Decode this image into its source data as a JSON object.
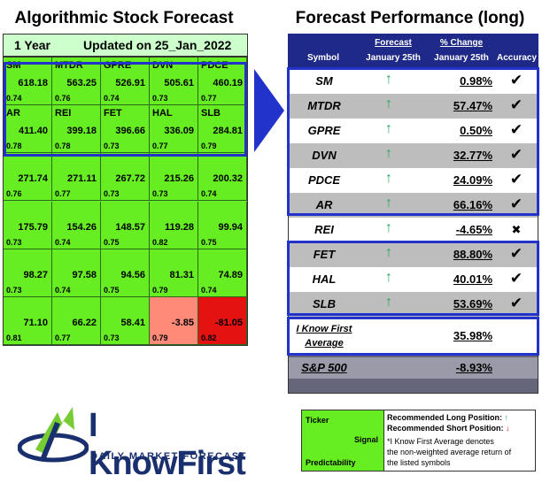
{
  "left": {
    "title": "Algorithmic Stock Forecast",
    "period": "1 Year",
    "updated": "Updated on 25_Jan_2022",
    "grid": [
      [
        {
          "ticker": "SM",
          "signal": "618.18",
          "pred": "0.74",
          "color": "#66ee22"
        },
        {
          "ticker": "MTDR",
          "signal": "563.25",
          "pred": "0.76",
          "color": "#66ee22"
        },
        {
          "ticker": "GPRE",
          "signal": "526.91",
          "pred": "0.74",
          "color": "#66ee22"
        },
        {
          "ticker": "DVN",
          "signal": "505.61",
          "pred": "0.73",
          "color": "#66ee22"
        },
        {
          "ticker": "PDCE",
          "signal": "460.19",
          "pred": "0.77",
          "color": "#66ee22"
        }
      ],
      [
        {
          "ticker": "AR",
          "signal": "411.40",
          "pred": "0.78",
          "color": "#66ee22"
        },
        {
          "ticker": "REI",
          "signal": "399.18",
          "pred": "0.78",
          "color": "#66ee22"
        },
        {
          "ticker": "FET",
          "signal": "396.66",
          "pred": "0.73",
          "color": "#66ee22"
        },
        {
          "ticker": "HAL",
          "signal": "336.09",
          "pred": "0.77",
          "color": "#66ee22"
        },
        {
          "ticker": "SLB",
          "signal": "284.81",
          "pred": "0.79",
          "color": "#66ee22"
        }
      ],
      [
        {
          "ticker": "",
          "signal": "271.74",
          "pred": "0.76",
          "color": "#66ee22"
        },
        {
          "ticker": "",
          "signal": "271.11",
          "pred": "0.77",
          "color": "#66ee22"
        },
        {
          "ticker": "",
          "signal": "267.72",
          "pred": "0.73",
          "color": "#66ee22"
        },
        {
          "ticker": "",
          "signal": "215.26",
          "pred": "0.73",
          "color": "#66ee22"
        },
        {
          "ticker": "",
          "signal": "200.32",
          "pred": "0.74",
          "color": "#66ee22"
        }
      ],
      [
        {
          "ticker": "",
          "signal": "175.79",
          "pred": "0.73",
          "color": "#66ee22"
        },
        {
          "ticker": "",
          "signal": "154.26",
          "pred": "0.74",
          "color": "#66ee22"
        },
        {
          "ticker": "",
          "signal": "148.57",
          "pred": "0.75",
          "color": "#66ee22"
        },
        {
          "ticker": "",
          "signal": "119.28",
          "pred": "0.82",
          "color": "#66ee22"
        },
        {
          "ticker": "",
          "signal": "99.94",
          "pred": "0.75",
          "color": "#66ee22"
        }
      ],
      [
        {
          "ticker": "",
          "signal": "98.27",
          "pred": "0.73",
          "color": "#66ee22"
        },
        {
          "ticker": "",
          "signal": "97.58",
          "pred": "0.74",
          "color": "#66ee22"
        },
        {
          "ticker": "",
          "signal": "94.56",
          "pred": "0.75",
          "color": "#66ee22"
        },
        {
          "ticker": "",
          "signal": "81.31",
          "pred": "0.79",
          "color": "#66ee22"
        },
        {
          "ticker": "",
          "signal": "74.89",
          "pred": "0.74",
          "color": "#66ee22"
        }
      ],
      [
        {
          "ticker": "",
          "signal": "71.10",
          "pred": "0.81",
          "color": "#66ee22"
        },
        {
          "ticker": "",
          "signal": "66.22",
          "pred": "0.77",
          "color": "#66ee22"
        },
        {
          "ticker": "",
          "signal": "58.41",
          "pred": "0.73",
          "color": "#66ee22"
        },
        {
          "ticker": "",
          "signal": "-3.85",
          "pred": "0.79",
          "color": "#ff8a78"
        },
        {
          "ticker": "",
          "signal": "-81.05",
          "pred": "0.82",
          "color": "#e51212"
        }
      ]
    ]
  },
  "right": {
    "title": "Forecast Performance (long)",
    "headers": {
      "symbol": "Symbol",
      "forecast_top": "Forecast",
      "forecast_bottom": "January 25th",
      "change_top": "% Change",
      "change_bottom": "January 25th",
      "accuracy": "Accuracy"
    },
    "rows": [
      {
        "symbol": "SM",
        "arrow": "↑",
        "change": "0.98%",
        "accuracy": "✔"
      },
      {
        "symbol": "MTDR",
        "arrow": "↑",
        "change": "57.47%",
        "accuracy": "✔"
      },
      {
        "symbol": "GPRE",
        "arrow": "↑",
        "change": "0.50%",
        "accuracy": "✔"
      },
      {
        "symbol": "DVN",
        "arrow": "↑",
        "change": "32.77%",
        "accuracy": "✔"
      },
      {
        "symbol": "PDCE",
        "arrow": "↑",
        "change": "24.09%",
        "accuracy": "✔"
      },
      {
        "symbol": "AR",
        "arrow": "↑",
        "change": "66.16%",
        "accuracy": "✔"
      },
      {
        "symbol": "REI",
        "arrow": "↑",
        "change": "-4.65%",
        "accuracy": "✖"
      },
      {
        "symbol": "FET",
        "arrow": "↑",
        "change": "88.80%",
        "accuracy": "✔"
      },
      {
        "symbol": "HAL",
        "arrow": "↑",
        "change": "40.01%",
        "accuracy": "✔"
      },
      {
        "symbol": "SLB",
        "arrow": "↑",
        "change": "53.69%",
        "accuracy": "✔"
      }
    ],
    "average": {
      "label_1": "I Know First",
      "label_2": "Average",
      "change": "35.98%"
    },
    "sp500": {
      "label": "S&P 500",
      "change": "-8.93%"
    }
  },
  "legend": {
    "ticker": "Ticker",
    "signal": "Signal",
    "predictability": "Predictability",
    "long": "Recommended Long Position:",
    "long_arrow": "↑",
    "short": "Recommended Short Position:",
    "short_arrow": "↓",
    "note_1": "*I Know First Average denotes",
    "note_2": "the non-weighted average return of",
    "note_3": "the listed symbols"
  },
  "logo": {
    "name": "I KnowFirst",
    "tagline": "DAILY MARKET FORECAST"
  },
  "colors": {
    "positive": "#66ee22",
    "accent_blue": "#2233cc",
    "header_navy": "#1f2a88",
    "up_arrow": "#22aa55",
    "down_arrow": "#dd2222"
  }
}
